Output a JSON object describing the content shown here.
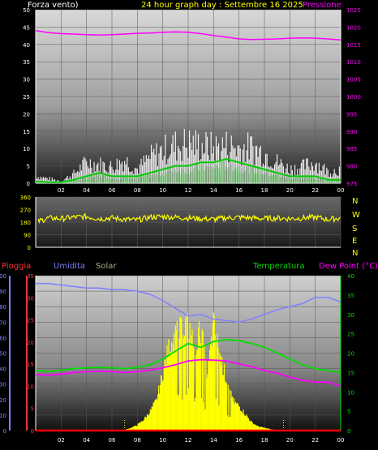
{
  "header": {
    "wind_label": "Forza vento)",
    "title": "24 hour graph day : Settembre 16 2025",
    "pressure_label": "Pressione"
  },
  "colors": {
    "wind_gust": "#ffffff",
    "wind_avg": "#00cc00",
    "pressure": "#ff00ff",
    "direction": "#ffff00",
    "rain": "#ff0000",
    "humidity": "#8080ff",
    "solar": "#ffff00",
    "temperature": "#00dd00",
    "dewpoint": "#ff00ff",
    "compass": "#ffff00"
  },
  "x_ticks": [
    "02",
    "04",
    "06",
    "08",
    "10",
    "12",
    "14",
    "16",
    "18",
    "20",
    "22",
    "00"
  ],
  "compass": [
    "N",
    "W",
    "S",
    "E",
    "N"
  ],
  "bottom_labels": {
    "rain": "Pioggia",
    "humidity": "Umidita",
    "solar": "Solar",
    "temperature": "Temperatura",
    "dewpoint": "Dew Point (°C)"
  },
  "chart_data": [
    {
      "type": "line",
      "title": "24 hour graph day : Settembre 16 2025",
      "xlabel": "",
      "ylabel": "",
      "x_hours": [
        0,
        24
      ],
      "left_axis": {
        "ylim": [
          0,
          50
        ],
        "ticks": [
          "0",
          "5",
          "10",
          "15",
          "20",
          "25",
          "30",
          "35",
          "40",
          "45",
          "50"
        ]
      },
      "right_axis": {
        "ylim": [
          975,
          1025
        ],
        "ticks": [
          "975",
          "980",
          "985",
          "990",
          "995",
          "1000",
          "1005",
          "1010",
          "1015",
          "1020",
          "1025"
        ]
      },
      "series": [
        {
          "name": "Pressione",
          "axis": "right",
          "x": [
            0,
            1,
            2,
            3,
            4,
            5,
            6,
            7,
            8,
            9,
            10,
            11,
            12,
            13,
            14,
            15,
            16,
            17,
            18,
            19,
            20,
            21,
            22,
            23,
            24
          ],
          "values": [
            1019.0,
            1018.4,
            1018.1,
            1018.0,
            1017.8,
            1017.7,
            1017.8,
            1018.0,
            1018.2,
            1018.3,
            1018.5,
            1018.6,
            1018.5,
            1018.1,
            1017.6,
            1017.1,
            1016.6,
            1016.4,
            1016.5,
            1016.6,
            1016.8,
            1016.9,
            1016.8,
            1016.6,
            1016.3
          ]
        },
        {
          "name": "Forza vento)",
          "axis": "left",
          "x": [
            0,
            1,
            2,
            3,
            4,
            5,
            6,
            7,
            8,
            9,
            10,
            11,
            12,
            13,
            14,
            15,
            16,
            17,
            18,
            19,
            20,
            21,
            22,
            23,
            24
          ],
          "gust": [
            3,
            2,
            1,
            4,
            9,
            8,
            7,
            10,
            6,
            11,
            14,
            16,
            17,
            16,
            15,
            16,
            15,
            15,
            13,
            9,
            6,
            7,
            9,
            5,
            6
          ],
          "avg": [
            0.5,
            0.3,
            0.3,
            1,
            2,
            3,
            2,
            2,
            2,
            3,
            4,
            5,
            5,
            6,
            6,
            7,
            6,
            5,
            4,
            3,
            2,
            2,
            2,
            1,
            1
          ]
        }
      ]
    },
    {
      "type": "scatter",
      "x_hours": [
        0,
        24
      ],
      "ylim": [
        0,
        360
      ],
      "yticks": [
        "0",
        "90",
        "180",
        "270",
        "360"
      ],
      "direction_deg": [
        180,
        210,
        205,
        215,
        220,
        205,
        210,
        200,
        195,
        215,
        220,
        215,
        210,
        205,
        200,
        210,
        215,
        210,
        205,
        210,
        205,
        210,
        215,
        200,
        210
      ]
    },
    {
      "type": "line",
      "x_hours": [
        0,
        24
      ],
      "axes": {
        "humidity": {
          "ylim": [
            0,
            100
          ],
          "ticks": [
            "0",
            "10",
            "20",
            "30",
            "40",
            "50",
            "60",
            "70",
            "80",
            "90",
            "100"
          ]
        },
        "rain": {
          "ylim": [
            0,
            35
          ],
          "ticks": [
            "0",
            "5",
            "10",
            "15",
            "20",
            "25",
            "30",
            "35"
          ]
        },
        "temperature": {
          "ylim": [
            0,
            40
          ],
          "ticks": [
            "0",
            "5",
            "10",
            "15",
            "20",
            "25",
            "30",
            "35",
            "40"
          ]
        }
      },
      "series": [
        {
          "name": "Umidita",
          "x": [
            0,
            1,
            2,
            3,
            4,
            5,
            6,
            7,
            8,
            9,
            10,
            11,
            12,
            13,
            14,
            15,
            16,
            17,
            18,
            19,
            20,
            21,
            22,
            23,
            24
          ],
          "values": [
            95,
            95,
            94,
            93,
            92,
            92,
            91,
            91,
            90,
            88,
            84,
            79,
            74,
            75,
            72,
            71,
            70,
            72,
            75,
            78,
            80,
            82,
            86,
            86,
            83
          ]
        },
        {
          "name": "Temperatura",
          "x": [
            0,
            1,
            2,
            3,
            4,
            5,
            6,
            7,
            8,
            9,
            10,
            11,
            12,
            13,
            14,
            15,
            16,
            17,
            18,
            19,
            20,
            21,
            22,
            23,
            24
          ],
          "values": [
            15.5,
            15.2,
            15.6,
            16.0,
            16.2,
            16.3,
            16.2,
            16.0,
            16.3,
            17.0,
            18.5,
            20.5,
            22.5,
            21.5,
            23.0,
            23.5,
            23.2,
            22.5,
            21.5,
            20.0,
            18.5,
            17.0,
            16.0,
            15.5,
            15.0
          ]
        },
        {
          "name": "Dew Point (°C)",
          "x": [
            0,
            1,
            2,
            3,
            4,
            5,
            6,
            7,
            8,
            9,
            10,
            11,
            12,
            13,
            14,
            15,
            16,
            17,
            18,
            19,
            20,
            21,
            22,
            23,
            24
          ],
          "values": [
            14.5,
            14.3,
            14.6,
            15.0,
            15.2,
            15.3,
            15.2,
            15.0,
            15.2,
            15.6,
            16.2,
            17.0,
            18.0,
            18.3,
            18.2,
            18.0,
            17.2,
            16.5,
            15.5,
            14.8,
            13.8,
            13.0,
            12.5,
            12.5,
            11.5
          ]
        },
        {
          "name": "Solar",
          "x": [
            6.8,
            7.5,
            8,
            8.5,
            9,
            9.5,
            10,
            10.5,
            11,
            11.5,
            12,
            12.5,
            13,
            13.5,
            14,
            14.5,
            15,
            15.5,
            16,
            16.5,
            17,
            17.5,
            18,
            18.5,
            19
          ],
          "values": [
            0,
            2,
            4,
            8,
            14,
            22,
            42,
            62,
            70,
            75,
            80,
            60,
            76,
            40,
            78,
            55,
            38,
            22,
            18,
            12,
            6,
            3,
            2,
            1,
            0
          ]
        },
        {
          "name": "Pioggia",
          "x": [
            0,
            24
          ],
          "values": [
            0,
            0
          ]
        }
      ]
    }
  ]
}
